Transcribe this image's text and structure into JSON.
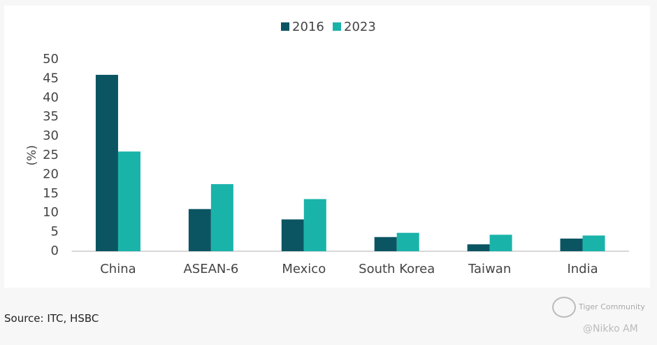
{
  "chart_data": {
    "type": "bar",
    "categories": [
      "China",
      "ASEAN-6",
      "Mexico",
      "South Korea",
      "Taiwan",
      "India"
    ],
    "series": [
      {
        "name": "2016",
        "color": "#0b5563",
        "values": [
          46,
          11,
          8.3,
          3.7,
          1.8,
          3.3
        ]
      },
      {
        "name": "2023",
        "color": "#1ab3aa",
        "values": [
          26,
          17.5,
          13.6,
          4.8,
          4.3,
          4.1
        ]
      }
    ],
    "y_label": "(%)",
    "ylim": [
      0,
      50
    ],
    "yticks": [
      0,
      5,
      10,
      15,
      20,
      25,
      30,
      35,
      40,
      45,
      50
    ],
    "grid": false,
    "legend": "top"
  },
  "footer": {
    "source": "Source: ITC, HSBC",
    "watermark": "Tiger Community",
    "credit": "@Nikko AM"
  }
}
